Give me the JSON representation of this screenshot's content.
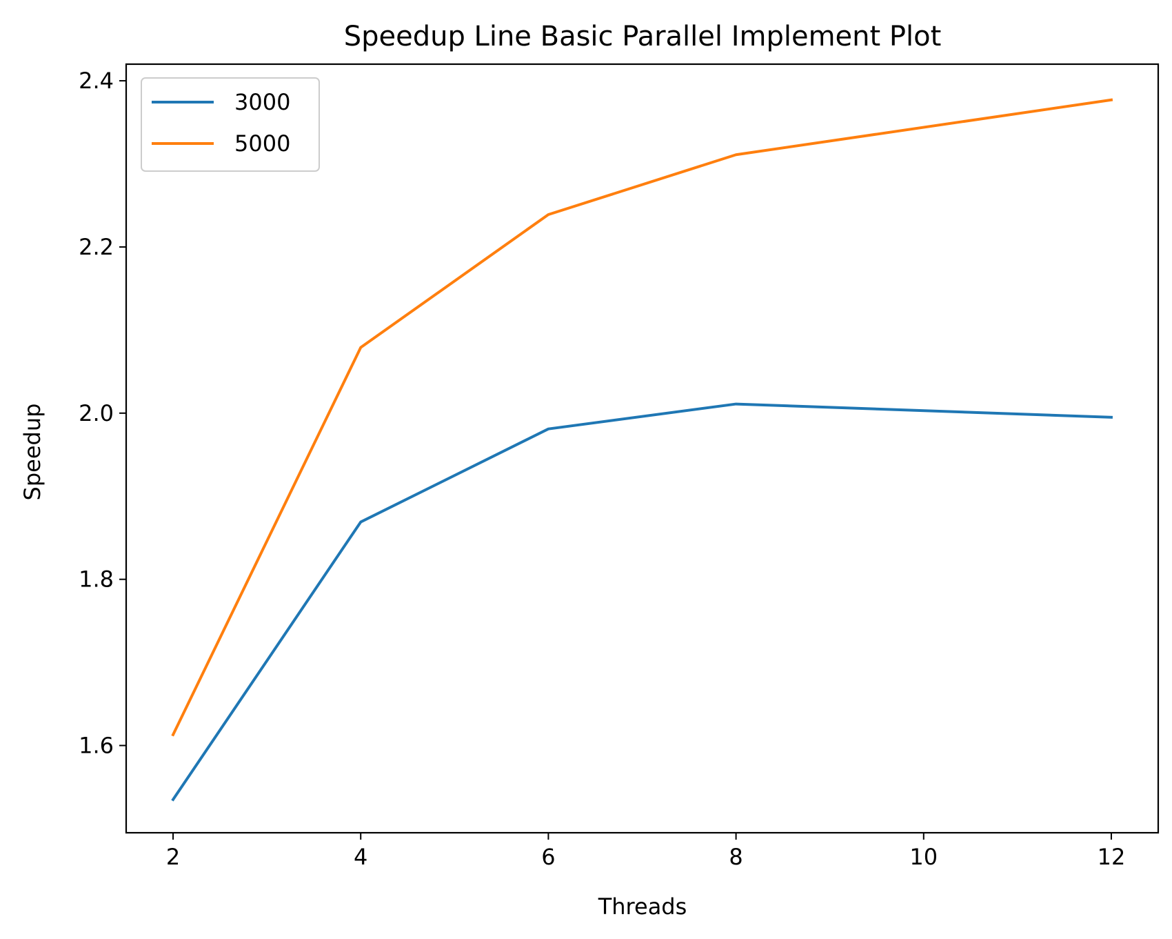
{
  "chart_data": {
    "type": "line",
    "title": "Speedup Line Basic Parallel Implement Plot",
    "xlabel": "Threads",
    "ylabel": "Speedup",
    "x": [
      2,
      4,
      6,
      8,
      10,
      12
    ],
    "xlim": [
      1.5,
      12.5
    ],
    "ylim": [
      1.495,
      2.42
    ],
    "xticks": [
      2,
      4,
      6,
      8,
      10,
      12
    ],
    "yticks": [
      1.6,
      1.8,
      2.0,
      2.2,
      2.4
    ],
    "xtick_labels": [
      "2",
      "4",
      "6",
      "8",
      "10",
      "12"
    ],
    "ytick_labels": [
      "1.6",
      "1.8",
      "2.0",
      "2.2",
      "2.4"
    ],
    "grid": false,
    "legend_position": "top-left",
    "series": [
      {
        "name": "3000",
        "color": "#1f77b4",
        "points": [
          [
            2,
            1.535
          ],
          [
            4,
            1.869
          ],
          [
            6,
            1.981
          ],
          [
            8,
            2.011
          ],
          [
            12,
            1.995
          ]
        ]
      },
      {
        "name": "5000",
        "color": "#ff7f0e",
        "points": [
          [
            2,
            1.613
          ],
          [
            4,
            2.079
          ],
          [
            6,
            2.239
          ],
          [
            8,
            2.311
          ],
          [
            12,
            2.377
          ]
        ]
      }
    ]
  }
}
